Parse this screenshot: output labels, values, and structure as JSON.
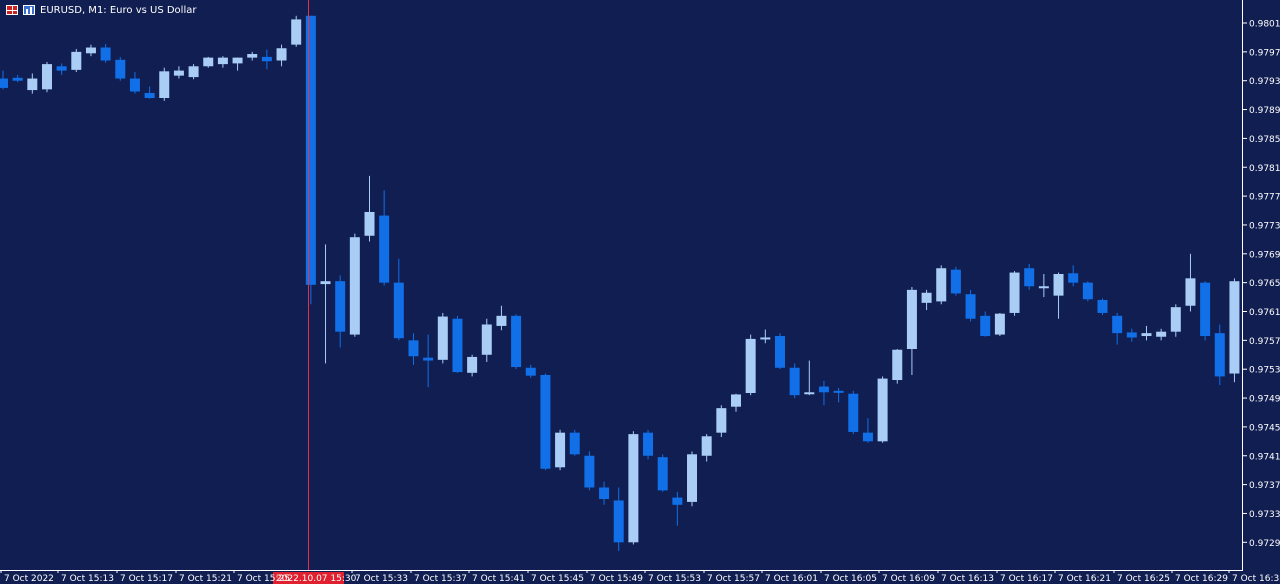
{
  "window": {
    "title": "EURUSD, M1:  Euro vs US Dollar",
    "icons": [
      "menu-grid-icon",
      "chart-window-icon"
    ]
  },
  "colors": {
    "background": "#111e52",
    "axis": "#ffffff",
    "bull_candle": "#a9cdf5",
    "bear_candle": "#1170e8",
    "price_label_text": "#ffffff",
    "crosshair": "#e53045",
    "crosshair_label_bg": "#e0202f"
  },
  "crosshair": {
    "label": "2022.10.07 15:30",
    "time": "7 Oct 15:30"
  },
  "chart_data": {
    "type": "candlestick",
    "symbol": "EURUSD",
    "timeframe": "M1",
    "y_axis": {
      "ticks": [
        "0.98010",
        "0.97970",
        "0.97930",
        "0.97890",
        "0.97850",
        "0.97810",
        "0.97770",
        "0.97730",
        "0.97690",
        "0.97650",
        "0.97610",
        "0.97570",
        "0.97530",
        "0.97490",
        "0.97450",
        "0.97410",
        "0.97370",
        "0.97330",
        "0.97290"
      ],
      "range": [
        0.9726,
        0.9803
      ]
    },
    "x_axis": {
      "ticks": [
        "7 Oct 2022",
        "7 Oct 15:13",
        "7 Oct 15:17",
        "7 Oct 15:21",
        "7 Oct 15:25",
        "7 Oct 15:33",
        "7 Oct 15:37",
        "7 Oct 15:41",
        "7 Oct 15:45",
        "7 Oct 15:49",
        "7 Oct 15:53",
        "7 Oct 15:57",
        "7 Oct 16:01",
        "7 Oct 16:05",
        "7 Oct 16:09",
        "7 Oct 16:13",
        "7 Oct 16:17",
        "7 Oct 16:21",
        "7 Oct 16:25",
        "7 Oct 16:29",
        "7 Oct 16:33"
      ]
    },
    "candles": [
      {
        "o": 0.97933,
        "h": 0.97944,
        "l": 0.97918,
        "c": 0.9792
      },
      {
        "o": 0.97934,
        "h": 0.97938,
        "l": 0.97928,
        "c": 0.9793
      },
      {
        "o": 0.97917,
        "h": 0.9794,
        "l": 0.97912,
        "c": 0.97933
      },
      {
        "o": 0.97918,
        "h": 0.97956,
        "l": 0.97914,
        "c": 0.97953
      },
      {
        "o": 0.9795,
        "h": 0.97954,
        "l": 0.97938,
        "c": 0.97944
      },
      {
        "o": 0.97945,
        "h": 0.97974,
        "l": 0.97942,
        "c": 0.9797
      },
      {
        "o": 0.97968,
        "h": 0.9798,
        "l": 0.97964,
        "c": 0.97976
      },
      {
        "o": 0.97976,
        "h": 0.97981,
        "l": 0.97955,
        "c": 0.97958
      },
      {
        "o": 0.97959,
        "h": 0.97963,
        "l": 0.9793,
        "c": 0.97933
      },
      {
        "o": 0.97933,
        "h": 0.97942,
        "l": 0.97912,
        "c": 0.97915
      },
      {
        "o": 0.97913,
        "h": 0.97922,
        "l": 0.97905,
        "c": 0.97906
      },
      {
        "o": 0.97906,
        "h": 0.97948,
        "l": 0.97902,
        "c": 0.97943
      },
      {
        "o": 0.97937,
        "h": 0.9795,
        "l": 0.97933,
        "c": 0.97944
      },
      {
        "o": 0.97935,
        "h": 0.97953,
        "l": 0.97932,
        "c": 0.9795
      },
      {
        "o": 0.9795,
        "h": 0.97963,
        "l": 0.97948,
        "c": 0.97962
      },
      {
        "o": 0.97953,
        "h": 0.97964,
        "l": 0.97948,
        "c": 0.97962
      },
      {
        "o": 0.97954,
        "h": 0.97962,
        "l": 0.97944,
        "c": 0.97962
      },
      {
        "o": 0.97962,
        "h": 0.9797,
        "l": 0.97958,
        "c": 0.97967
      },
      {
        "o": 0.97963,
        "h": 0.97973,
        "l": 0.97946,
        "c": 0.97957
      },
      {
        "o": 0.97958,
        "h": 0.9798,
        "l": 0.9795,
        "c": 0.97975
      },
      {
        "o": 0.9798,
        "h": 0.9802,
        "l": 0.97977,
        "c": 0.98015
      },
      {
        "o": 0.9802,
        "h": 0.9802,
        "l": 0.9762,
        "c": 0.97647
      },
      {
        "o": 0.97648,
        "h": 0.97703,
        "l": 0.97538,
        "c": 0.97652
      },
      {
        "o": 0.97652,
        "h": 0.9766,
        "l": 0.9756,
        "c": 0.97582
      },
      {
        "o": 0.97578,
        "h": 0.97718,
        "l": 0.97575,
        "c": 0.97713
      },
      {
        "o": 0.97715,
        "h": 0.97798,
        "l": 0.97707,
        "c": 0.97748
      },
      {
        "o": 0.97743,
        "h": 0.97778,
        "l": 0.97646,
        "c": 0.9765
      },
      {
        "o": 0.9765,
        "h": 0.97683,
        "l": 0.9757,
        "c": 0.97573
      },
      {
        "o": 0.9757,
        "h": 0.9758,
        "l": 0.97536,
        "c": 0.97548
      },
      {
        "o": 0.97546,
        "h": 0.97578,
        "l": 0.97505,
        "c": 0.97542
      },
      {
        "o": 0.97543,
        "h": 0.97608,
        "l": 0.97538,
        "c": 0.97603
      },
      {
        "o": 0.976,
        "h": 0.97604,
        "l": 0.97525,
        "c": 0.97526
      },
      {
        "o": 0.97525,
        "h": 0.9755,
        "l": 0.9752,
        "c": 0.97547
      },
      {
        "o": 0.9755,
        "h": 0.976,
        "l": 0.9754,
        "c": 0.97592
      },
      {
        "o": 0.9759,
        "h": 0.97618,
        "l": 0.97584,
        "c": 0.97604
      },
      {
        "o": 0.97604,
        "h": 0.97606,
        "l": 0.9753,
        "c": 0.97533
      },
      {
        "o": 0.97532,
        "h": 0.97536,
        "l": 0.97518,
        "c": 0.97521
      },
      {
        "o": 0.97522,
        "h": 0.97524,
        "l": 0.9739,
        "c": 0.97392
      },
      {
        "o": 0.97394,
        "h": 0.97446,
        "l": 0.9739,
        "c": 0.97442
      },
      {
        "o": 0.97442,
        "h": 0.97446,
        "l": 0.9741,
        "c": 0.97412
      },
      {
        "o": 0.9741,
        "h": 0.97416,
        "l": 0.97362,
        "c": 0.97366
      },
      {
        "o": 0.97366,
        "h": 0.97374,
        "l": 0.97342,
        "c": 0.9735
      },
      {
        "o": 0.97348,
        "h": 0.97366,
        "l": 0.97278,
        "c": 0.9729
      },
      {
        "o": 0.9729,
        "h": 0.97444,
        "l": 0.97287,
        "c": 0.9744
      },
      {
        "o": 0.97442,
        "h": 0.97446,
        "l": 0.97405,
        "c": 0.9741
      },
      {
        "o": 0.97408,
        "h": 0.97412,
        "l": 0.9736,
        "c": 0.97362
      },
      {
        "o": 0.97352,
        "h": 0.9736,
        "l": 0.97313,
        "c": 0.97342
      },
      {
        "o": 0.97346,
        "h": 0.97416,
        "l": 0.9734,
        "c": 0.97412
      },
      {
        "o": 0.9741,
        "h": 0.9744,
        "l": 0.97402,
        "c": 0.97437
      },
      {
        "o": 0.97442,
        "h": 0.9748,
        "l": 0.97436,
        "c": 0.97476
      },
      {
        "o": 0.97478,
        "h": 0.97496,
        "l": 0.97471,
        "c": 0.97495
      },
      {
        "o": 0.97497,
        "h": 0.97578,
        "l": 0.97494,
        "c": 0.97572
      },
      {
        "o": 0.97572,
        "h": 0.97585,
        "l": 0.97566,
        "c": 0.97574
      },
      {
        "o": 0.97576,
        "h": 0.9758,
        "l": 0.9753,
        "c": 0.97532
      },
      {
        "o": 0.97532,
        "h": 0.97538,
        "l": 0.9749,
        "c": 0.97494
      },
      {
        "o": 0.97496,
        "h": 0.97542,
        "l": 0.97494,
        "c": 0.97498
      },
      {
        "o": 0.97506,
        "h": 0.97514,
        "l": 0.9748,
        "c": 0.97498
      },
      {
        "o": 0.975,
        "h": 0.97504,
        "l": 0.97484,
        "c": 0.97498
      },
      {
        "o": 0.97496,
        "h": 0.975,
        "l": 0.9744,
        "c": 0.97443
      },
      {
        "o": 0.97442,
        "h": 0.97462,
        "l": 0.97428,
        "c": 0.9743
      },
      {
        "o": 0.9743,
        "h": 0.9752,
        "l": 0.97428,
        "c": 0.97517
      },
      {
        "o": 0.97515,
        "h": 0.97558,
        "l": 0.9751,
        "c": 0.97557
      },
      {
        "o": 0.97558,
        "h": 0.97644,
        "l": 0.97522,
        "c": 0.9764
      },
      {
        "o": 0.97622,
        "h": 0.9764,
        "l": 0.97612,
        "c": 0.97636
      },
      {
        "o": 0.97624,
        "h": 0.97674,
        "l": 0.9762,
        "c": 0.9767
      },
      {
        "o": 0.97668,
        "h": 0.97672,
        "l": 0.97632,
        "c": 0.97635
      },
      {
        "o": 0.97634,
        "h": 0.9764,
        "l": 0.97596,
        "c": 0.976
      },
      {
        "o": 0.97604,
        "h": 0.9761,
        "l": 0.97575,
        "c": 0.97576
      },
      {
        "o": 0.97578,
        "h": 0.97608,
        "l": 0.97576,
        "c": 0.97607
      },
      {
        "o": 0.97608,
        "h": 0.97666,
        "l": 0.97604,
        "c": 0.97664
      },
      {
        "o": 0.9767,
        "h": 0.97676,
        "l": 0.9764,
        "c": 0.97645
      },
      {
        "o": 0.97645,
        "h": 0.97662,
        "l": 0.9763,
        "c": 0.97645
      },
      {
        "o": 0.97632,
        "h": 0.97664,
        "l": 0.976,
        "c": 0.97662
      },
      {
        "o": 0.97663,
        "h": 0.97674,
        "l": 0.97645,
        "c": 0.9765
      },
      {
        "o": 0.9765,
        "h": 0.97652,
        "l": 0.97624,
        "c": 0.97627
      },
      {
        "o": 0.97626,
        "h": 0.97628,
        "l": 0.97605,
        "c": 0.97608
      },
      {
        "o": 0.97604,
        "h": 0.97608,
        "l": 0.97564,
        "c": 0.9758
      },
      {
        "o": 0.97581,
        "h": 0.97586,
        "l": 0.97568,
        "c": 0.97574
      },
      {
        "o": 0.97576,
        "h": 0.9759,
        "l": 0.9757,
        "c": 0.9758
      },
      {
        "o": 0.97575,
        "h": 0.97586,
        "l": 0.9757,
        "c": 0.97582
      },
      {
        "o": 0.97582,
        "h": 0.9762,
        "l": 0.97575,
        "c": 0.97616
      },
      {
        "o": 0.97618,
        "h": 0.9769,
        "l": 0.9761,
        "c": 0.97656
      },
      {
        "o": 0.9765,
        "h": 0.97652,
        "l": 0.9757,
        "c": 0.97576
      },
      {
        "o": 0.9758,
        "h": 0.97592,
        "l": 0.97508,
        "c": 0.9752
      },
      {
        "o": 0.97524,
        "h": 0.97656,
        "l": 0.97512,
        "c": 0.97652
      }
    ]
  }
}
